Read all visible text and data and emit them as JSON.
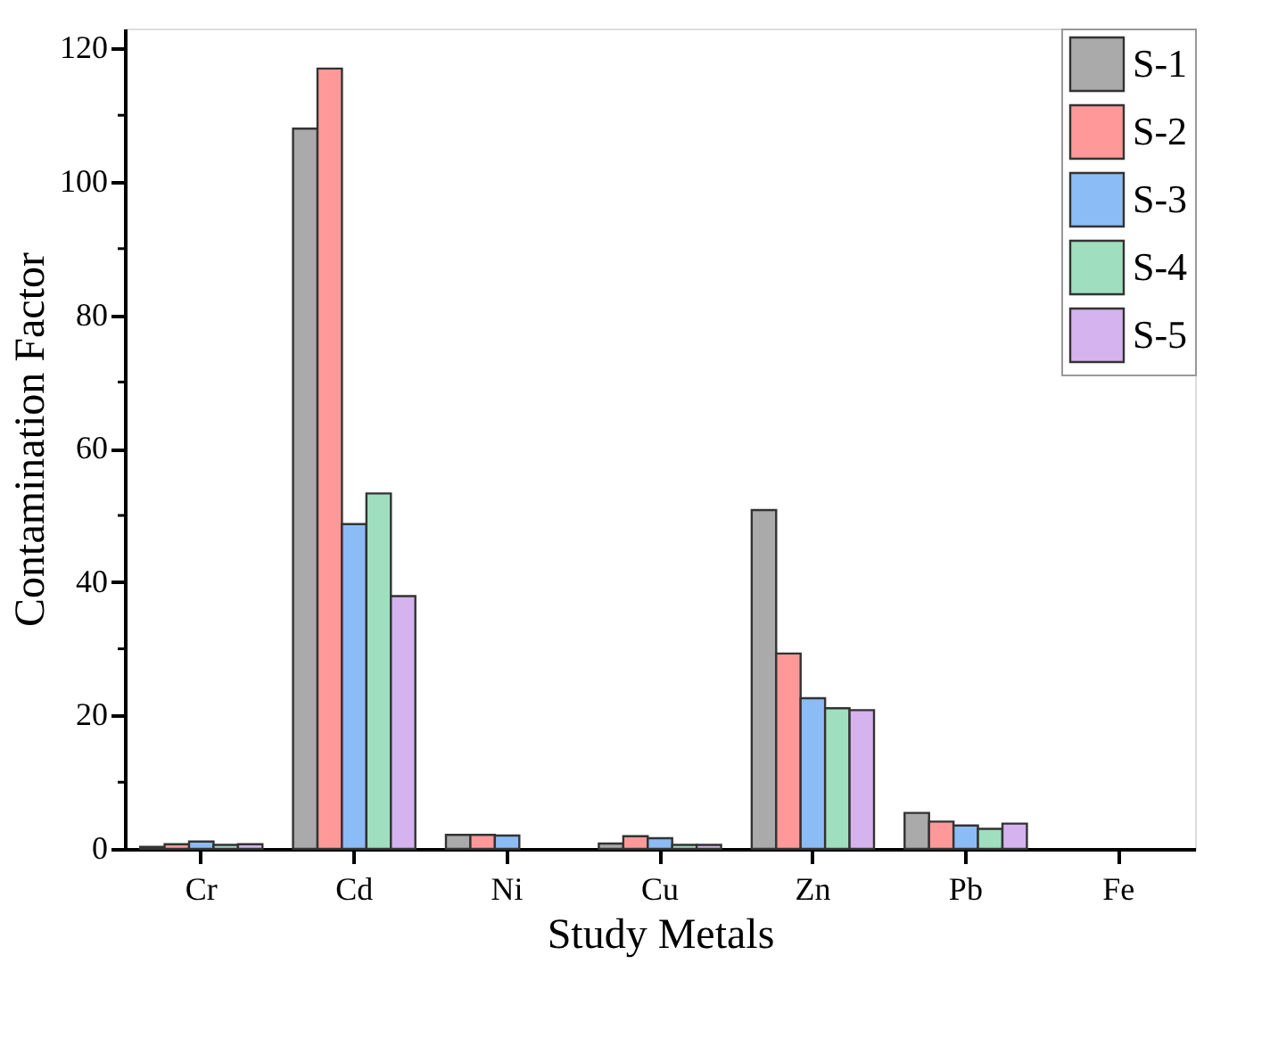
{
  "chart_data": {
    "type": "bar",
    "xlabel": "Study Metals",
    "ylabel": "Contamination Factor",
    "categories": [
      "Cr",
      "Cd",
      "Ni",
      "Cu",
      "Zn",
      "Pb",
      "Fe"
    ],
    "series": [
      {
        "name": "S-1",
        "color": "#aaaaaa",
        "values": [
          0.3,
          108,
          2.1,
          0.8,
          50.8,
          5.4,
          null
        ]
      },
      {
        "name": "S-2",
        "color": "#ff9999",
        "values": [
          0.7,
          117,
          2.1,
          1.9,
          29.3,
          4.1,
          null
        ]
      },
      {
        "name": "S-3",
        "color": "#8cbcf5",
        "values": [
          1.1,
          48.7,
          2.0,
          1.6,
          22.6,
          3.5,
          null
        ]
      },
      {
        "name": "S-4",
        "color": "#9fdfc0",
        "values": [
          0.6,
          53.3,
          null,
          0.6,
          21.1,
          3.0,
          null
        ]
      },
      {
        "name": "S-5",
        "color": "#d5b3ee",
        "values": [
          0.7,
          37.9,
          null,
          0.6,
          20.8,
          3.8,
          null
        ]
      }
    ],
    "ylim": [
      0,
      123
    ],
    "yticks": [
      0,
      20,
      40,
      60,
      80,
      100,
      120
    ],
    "grid": false,
    "legend": "top right"
  }
}
